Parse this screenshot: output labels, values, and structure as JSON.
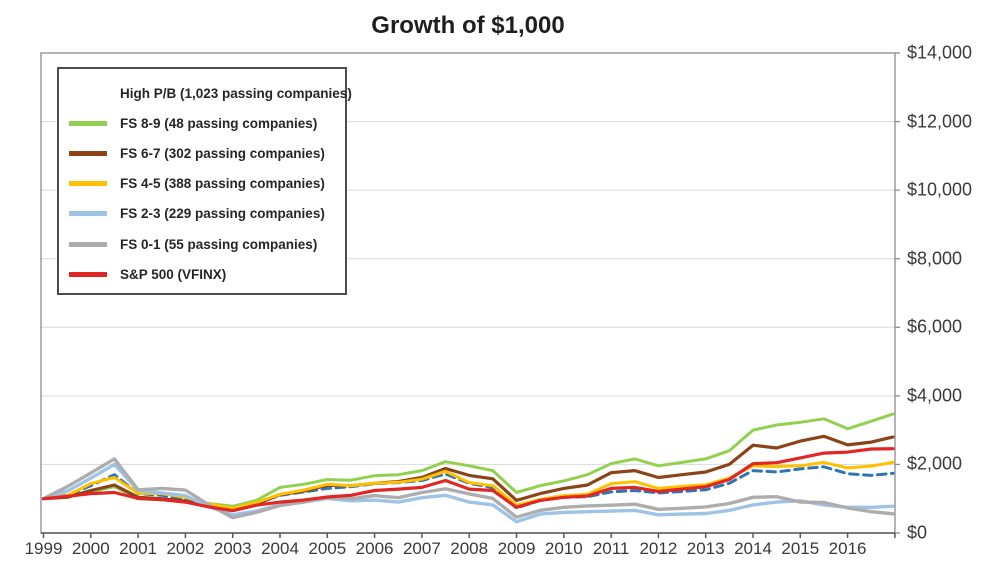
{
  "title": "Growth of $1,000",
  "chart_data": {
    "type": "line",
    "title": "Growth of $1,000",
    "xlabel": "",
    "ylabel": "",
    "grid": true,
    "legend_position": "top-left",
    "y_axis": {
      "position": "right",
      "min": 0,
      "max": 14000,
      "step": 2000,
      "tick_values": [
        0,
        2000,
        4000,
        6000,
        8000,
        10000,
        12000,
        14000
      ],
      "tick_labels": [
        "$0",
        "$2,000",
        "$4,000",
        "$6,000",
        "$8,000",
        "$10,000",
        "$12,000",
        "$14,000"
      ]
    },
    "x_axis": {
      "tick_years": [
        1999,
        2000,
        2001,
        2002,
        2003,
        2004,
        2005,
        2006,
        2007,
        2008,
        2009,
        2010,
        2011,
        2012,
        2013,
        2014,
        2015,
        2016
      ],
      "tick_labels": [
        "1999",
        "2000",
        "2001",
        "2002",
        "2003",
        "2004",
        "2005",
        "2006",
        "2007",
        "2008",
        "2009",
        "2010",
        "2011",
        "2012",
        "2013",
        "2014",
        "2015",
        "2016"
      ],
      "range": [
        1999,
        2017
      ]
    },
    "x": [
      1999,
      1999.5,
      2000,
      2000.5,
      2001,
      2001.5,
      2002,
      2002.5,
      2003,
      2003.5,
      2004,
      2004.5,
      2005,
      2005.5,
      2006,
      2006.5,
      2007,
      2007.5,
      2008,
      2008.5,
      2009,
      2009.5,
      2010,
      2010.5,
      2011,
      2011.5,
      2012,
      2012.5,
      2013,
      2013.5,
      2014,
      2014.5,
      2015,
      2015.5,
      2016,
      2016.5,
      2016.96
    ],
    "series": [
      {
        "name": "High P/B (1,023 passing companies)",
        "color": "#2E75B6",
        "dash": true,
        "width": 3,
        "values": [
          1000,
          1100,
          1380,
          1700,
          1150,
          1100,
          980,
          800,
          680,
          870,
          1100,
          1200,
          1300,
          1350,
          1440,
          1470,
          1530,
          1720,
          1450,
          1320,
          730,
          950,
          1040,
          1060,
          1200,
          1240,
          1170,
          1210,
          1260,
          1450,
          1820,
          1780,
          1870,
          1930,
          1730,
          1680,
          1740
        ]
      },
      {
        "name": "FS 8-9 (48 passing companies)",
        "color": "#92D050",
        "dash": false,
        "width": 3,
        "values": [
          1000,
          1050,
          1200,
          1350,
          1000,
          970,
          920,
          860,
          780,
          950,
          1330,
          1420,
          1560,
          1540,
          1670,
          1700,
          1820,
          2080,
          1960,
          1820,
          1180,
          1380,
          1520,
          1700,
          2020,
          2160,
          1960,
          2060,
          2160,
          2400,
          3000,
          3150,
          3230,
          3330,
          3040,
          3260,
          3470
        ]
      },
      {
        "name": "FS 6-7 (302 passing companies)",
        "color": "#8B4318",
        "dash": false,
        "width": 3.2,
        "values": [
          1000,
          1040,
          1240,
          1400,
          1040,
          1000,
          930,
          820,
          660,
          840,
          1120,
          1220,
          1390,
          1380,
          1450,
          1500,
          1620,
          1880,
          1680,
          1580,
          950,
          1150,
          1300,
          1400,
          1760,
          1820,
          1620,
          1700,
          1780,
          2000,
          2560,
          2480,
          2680,
          2820,
          2570,
          2650,
          2800
        ]
      },
      {
        "name": "FS 4-5 (388 passing companies)",
        "color": "#FFC000",
        "dash": false,
        "width": 3,
        "values": [
          1000,
          1090,
          1440,
          1620,
          1160,
          1150,
          1040,
          850,
          720,
          890,
          1130,
          1250,
          1420,
          1380,
          1450,
          1480,
          1570,
          1800,
          1470,
          1380,
          810,
          980,
          1090,
          1130,
          1440,
          1500,
          1300,
          1360,
          1410,
          1600,
          1960,
          1940,
          1960,
          2060,
          1900,
          1950,
          2060
        ]
      },
      {
        "name": "FS 2-3 (229 passing companies)",
        "color": "#9DC3E6",
        "dash": false,
        "width": 3.4,
        "values": [
          1000,
          1220,
          1600,
          2000,
          1240,
          1170,
          1090,
          760,
          530,
          640,
          830,
          900,
          1010,
          940,
          960,
          900,
          1030,
          1100,
          900,
          820,
          330,
          550,
          600,
          620,
          640,
          660,
          530,
          550,
          570,
          660,
          820,
          900,
          940,
          820,
          750,
          750,
          780
        ]
      },
      {
        "name": "FS 0-1 (55 passing companies)",
        "color": "#ADADAD",
        "dash": false,
        "width": 3.4,
        "values": [
          1000,
          1350,
          1750,
          2160,
          1260,
          1300,
          1250,
          820,
          450,
          600,
          800,
          900,
          1040,
          1000,
          1090,
          1030,
          1180,
          1290,
          1140,
          1010,
          460,
          660,
          750,
          790,
          810,
          840,
          690,
          720,
          760,
          860,
          1040,
          1060,
          900,
          890,
          730,
          620,
          560
        ]
      },
      {
        "name": "S&P 500 (VFINX)",
        "color": "#E12726",
        "dash": false,
        "width": 3.2,
        "values": [
          1000,
          1070,
          1150,
          1180,
          1010,
          970,
          900,
          760,
          650,
          810,
          900,
          960,
          1050,
          1100,
          1240,
          1280,
          1330,
          1530,
          1280,
          1240,
          750,
          950,
          1040,
          1080,
          1300,
          1330,
          1210,
          1280,
          1350,
          1560,
          2020,
          2050,
          2190,
          2330,
          2360,
          2450,
          2460
        ]
      }
    ]
  },
  "style": {
    "gridline_color": "#D9D9D9",
    "plot_border_color": "#8C8C8C",
    "axis_line_color": "#595959",
    "background": "#FFFFFF"
  }
}
